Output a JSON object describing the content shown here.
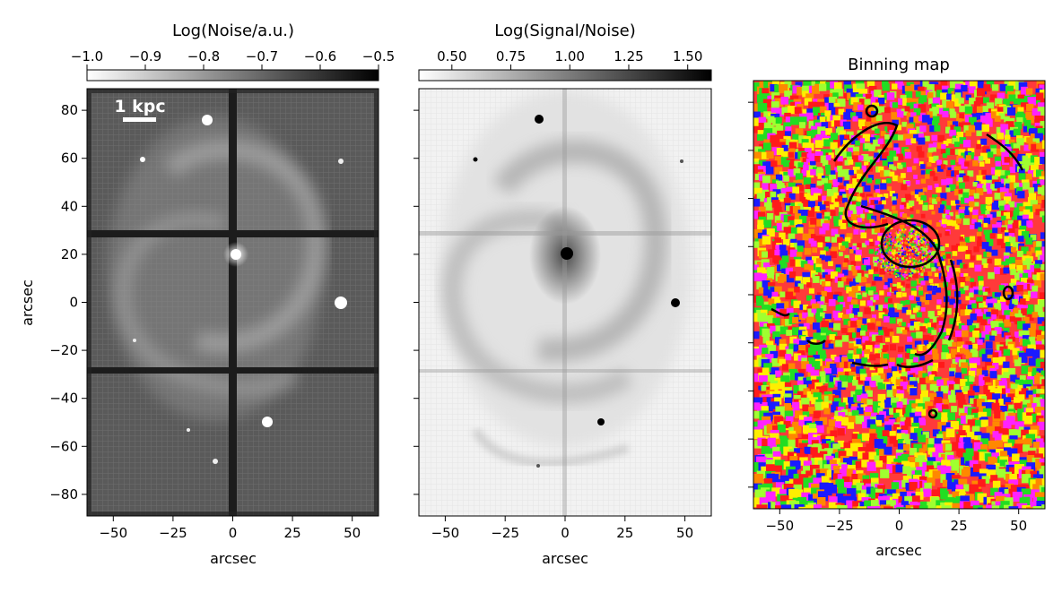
{
  "chart_data": [
    {
      "type": "heatmap",
      "colorbar_label": "Log(Noise/a.u.)",
      "colorbar_ticks": [
        -1.0,
        -0.9,
        -0.8,
        -0.7,
        -0.6,
        -0.5
      ],
      "colorbar_tick_labels": [
        "−1.0",
        "−0.9",
        "−0.8",
        "−0.7",
        "−0.6",
        "−0.5"
      ],
      "colorbar_range": [
        -1.0,
        -0.5
      ],
      "colormap": "white-to-black",
      "xlabel": "arcsec",
      "ylabel": "arcsec",
      "xlim": [
        -61,
        61
      ],
      "ylim": [
        -89,
        89
      ],
      "xticks": [
        -50,
        -25,
        0,
        25,
        50
      ],
      "xtick_labels": [
        "−50",
        "−25",
        "0",
        "25",
        "50"
      ],
      "yticks": [
        80,
        60,
        40,
        20,
        0,
        -20,
        -40,
        -60,
        -80
      ],
      "ytick_labels": [
        "80",
        "60",
        "40",
        "20",
        "0",
        "−20",
        "−40",
        "−60",
        "−80"
      ],
      "annotation": "1 kpc",
      "scalebar_color": "#ffffff"
    },
    {
      "type": "heatmap",
      "colorbar_label": "Log(Signal/Noise)",
      "colorbar_ticks": [
        0.5,
        0.75,
        1.0,
        1.25,
        1.5
      ],
      "colorbar_tick_labels": [
        "0.50",
        "0.75",
        "1.00",
        "1.25",
        "1.50"
      ],
      "colorbar_range": [
        0.36,
        1.6
      ],
      "colormap": "white-to-black",
      "xlabel": "arcsec",
      "xlim": [
        -61,
        61
      ],
      "ylim": [
        -89,
        89
      ],
      "xticks": [
        -50,
        -25,
        0,
        25,
        50
      ],
      "xtick_labels": [
        "−50",
        "−25",
        "0",
        "25",
        "50"
      ],
      "yticks": [
        80,
        60,
        40,
        20,
        0,
        -20,
        -40,
        -60,
        -80
      ]
    },
    {
      "type": "heatmap",
      "title": "Binning map",
      "xlabel": "arcsec",
      "xlim": [
        -61,
        61
      ],
      "ylim": [
        -89,
        89
      ],
      "xticks": [
        -50,
        -25,
        0,
        25,
        50
      ],
      "xtick_labels": [
        "−50",
        "−25",
        "0",
        "25",
        "50"
      ],
      "yticks": [
        80,
        60,
        40,
        20,
        0,
        -20,
        -40,
        -60,
        -80
      ],
      "palette": [
        "#ff1a1a",
        "#ffee00",
        "#1a1aff",
        "#ff22ff",
        "#22dd22",
        "#ff8800",
        "#a0ff30"
      ]
    }
  ]
}
